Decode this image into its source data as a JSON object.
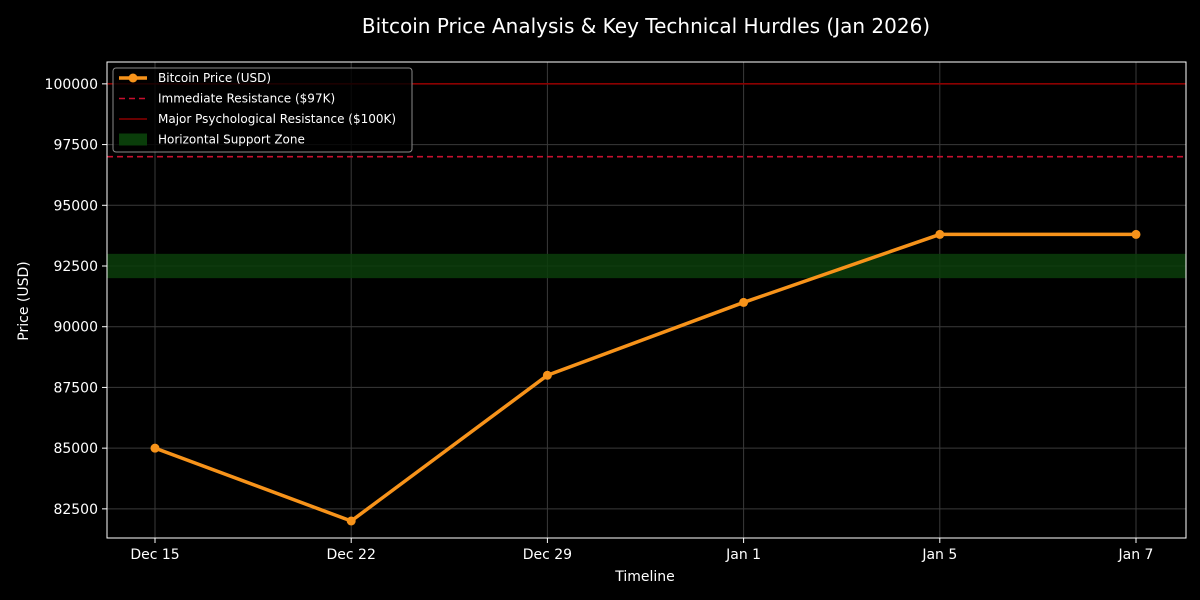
{
  "chart_data": {
    "type": "line",
    "title": "Bitcoin Price Analysis & Key Technical Hurdles (Jan 2026)",
    "xlabel": "Timeline",
    "ylabel": "Price (USD)",
    "categories": [
      "Dec 15",
      "Dec 22",
      "Dec 29",
      "Jan 1",
      "Jan 5",
      "Jan 7"
    ],
    "series": [
      {
        "name": "Bitcoin Price (USD)",
        "values": [
          85000,
          82000,
          88000,
          91000,
          93800,
          93800
        ],
        "color": "#f7931a"
      }
    ],
    "reference_lines": [
      {
        "name": "Immediate Resistance ($97K)",
        "value": 97000,
        "style": "dashed",
        "color": "#c8102e"
      },
      {
        "name": "Major Psychological Resistance ($100K)",
        "value": 100000,
        "style": "solid",
        "color": "#8b0000"
      }
    ],
    "bands": [
      {
        "name": "Horizontal Support Zone",
        "from": 92000,
        "to": 93000,
        "color": "#0a3d0a"
      }
    ],
    "yticks": [
      82500,
      85000,
      87500,
      90000,
      92500,
      95000,
      97500,
      100000
    ],
    "ylim": [
      81300,
      100900
    ],
    "grid": true,
    "legend_position": "top-left"
  }
}
